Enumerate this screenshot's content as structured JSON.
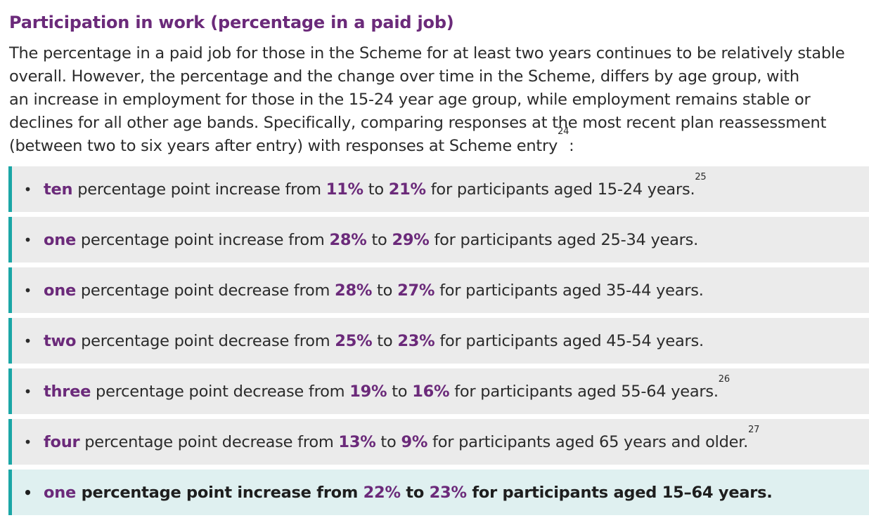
{
  "heading": "Participation in work (percentage in a paid job)",
  "intro": {
    "line1": "The percentage in a paid job for those in the Scheme for at least two years continues to be relatively stable",
    "line2": "overall. However, the percentage and the change over time in the Scheme, differs by age group, with",
    "line3": "an increase in employment for those in the 15-24 year age group, while employment remains stable or",
    "line4": "declines for all other age bands. Specifically, comparing responses at the most recent plan reassessment",
    "line5": "(between two to six years after entry) with responses at Scheme entry",
    "line5_sup": "24",
    "line5_end": ":"
  },
  "bullet_glyph": "•",
  "items": [
    {
      "amount": "ten",
      "t1": " percentage point increase from ",
      "from": "11%",
      "t2": " to ",
      "to": "21%",
      "t3": " for participants aged 15-24 years.",
      "sup": "25"
    },
    {
      "amount": "one",
      "t1": " percentage point increase from ",
      "from": "28%",
      "t2": " to ",
      "to": "29%",
      "t3": " for participants aged 25-34 years.",
      "sup": ""
    },
    {
      "amount": "one",
      "t1": " percentage point decrease from ",
      "from": "28%",
      "t2": " to ",
      "to": "27%",
      "t3": " for participants aged 35-44 years.",
      "sup": ""
    },
    {
      "amount": "two",
      "t1": " percentage point decrease from ",
      "from": "25%",
      "t2": " to ",
      "to": "23%",
      "t3": " for participants aged 45-54 years.",
      "sup": ""
    },
    {
      "amount": "three",
      "t1": " percentage point decrease from ",
      "from": "19%",
      "t2": " to ",
      "to": "16%",
      "t3": " for participants aged 55-64 years.",
      "sup": "26"
    },
    {
      "amount": "four",
      "t1": " percentage point decrease from ",
      "from": "13%",
      "t2": " to ",
      "to": "9%",
      "t3": " for participants aged 65 years and older.",
      "sup": "27"
    },
    {
      "amount": "one",
      "t1": " percentage point increase from ",
      "from": "22%",
      "t2": " to ",
      "to": "23%",
      "t3": " for participants aged 15–64 years.",
      "sup": ""
    }
  ],
  "colors": {
    "heading": "#6b2a7a",
    "accent_bar": "#1aa6a6",
    "row_background": "#ebebeb",
    "summary_background": "#dff0f0"
  }
}
